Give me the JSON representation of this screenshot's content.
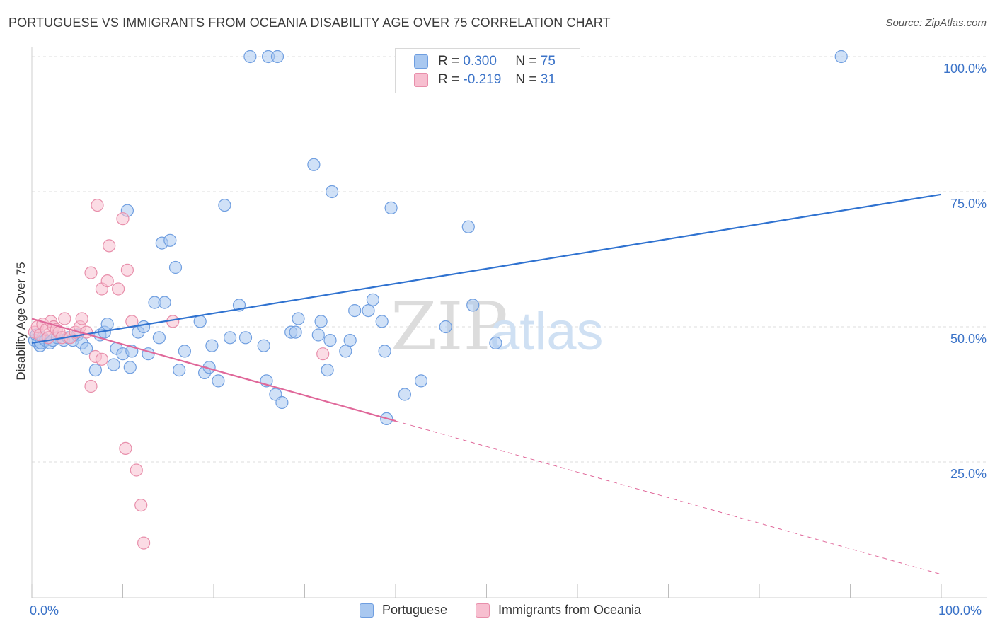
{
  "title": "PORTUGUESE VS IMMIGRANTS FROM OCEANIA DISABILITY AGE OVER 75 CORRELATION CHART",
  "source": "Source: ZipAtlas.com",
  "watermark": {
    "zip": "ZIP",
    "atlas": "atlas"
  },
  "legend": {
    "r_label": "R =",
    "n_label": "N =",
    "rows": [
      {
        "r": "0.300",
        "n": "75",
        "color": "#a9c8f0",
        "stroke": "#6f9ee0"
      },
      {
        "r": "-0.219",
        "n": "31",
        "color": "#f7bfd0",
        "stroke": "#e88fab"
      }
    ]
  },
  "chart_data": {
    "type": "scatter",
    "title": "PORTUGUESE VS IMMIGRANTS FROM OCEANIA DISABILITY AGE OVER 75 CORRELATION CHART",
    "xlabel": "",
    "ylabel": "Disability Age Over 75",
    "xlim": [
      0,
      100
    ],
    "ylim": [
      0,
      102
    ],
    "x_tick_labels": [
      "0.0%",
      "100.0%"
    ],
    "y_tick_labels": [
      "25.0%",
      "50.0%",
      "75.0%",
      "100.0%"
    ],
    "y_ticks": [
      25,
      50,
      75,
      100
    ],
    "grid": true,
    "series": [
      {
        "name": "Portuguese",
        "color": "#a9c8f0",
        "stroke": "#6f9ee0",
        "line_color": "#2f72d0",
        "trend": {
          "x0": 0,
          "y0": 47.0,
          "x1": 100,
          "y1": 74.5,
          "dashed_from": null
        },
        "points": [
          [
            0.3,
            47.5
          ],
          [
            0.5,
            48.5
          ],
          [
            0.7,
            47
          ],
          [
            0.9,
            46.5
          ],
          [
            1,
            47
          ],
          [
            1.2,
            48
          ],
          [
            1.5,
            47.5
          ],
          [
            2,
            47
          ],
          [
            2.3,
            47.5
          ],
          [
            2.8,
            48
          ],
          [
            3.5,
            47.5
          ],
          [
            4,
            48
          ],
          [
            4.5,
            47.5
          ],
          [
            5,
            48.5
          ],
          [
            5.5,
            47
          ],
          [
            6,
            46
          ],
          [
            7,
            42
          ],
          [
            7.5,
            48.5
          ],
          [
            8,
            49
          ],
          [
            8.3,
            50.5
          ],
          [
            9,
            43
          ],
          [
            9.3,
            46
          ],
          [
            10,
            45
          ],
          [
            10.5,
            71.5
          ],
          [
            10.8,
            42.5
          ],
          [
            11,
            45.5
          ],
          [
            11.7,
            49
          ],
          [
            12.3,
            50
          ],
          [
            12.8,
            45
          ],
          [
            13.5,
            54.5
          ],
          [
            14,
            48
          ],
          [
            14.3,
            65.5
          ],
          [
            14.6,
            54.5
          ],
          [
            15.2,
            66
          ],
          [
            15.8,
            61
          ],
          [
            16.2,
            42
          ],
          [
            16.8,
            45.5
          ],
          [
            18.5,
            51
          ],
          [
            19,
            41.5
          ],
          [
            19.5,
            42.5
          ],
          [
            19.8,
            46.5
          ],
          [
            20.5,
            40
          ],
          [
            21.2,
            72.5
          ],
          [
            21.8,
            48
          ],
          [
            22.8,
            54
          ],
          [
            23.5,
            48
          ],
          [
            24,
            100
          ],
          [
            25.5,
            46.5
          ],
          [
            25.8,
            40
          ],
          [
            26,
            100
          ],
          [
            26.8,
            37.5
          ],
          [
            27,
            100
          ],
          [
            27.5,
            36
          ],
          [
            28.5,
            49
          ],
          [
            29,
            49
          ],
          [
            29.3,
            51.5
          ],
          [
            31,
            80
          ],
          [
            31.5,
            48.5
          ],
          [
            31.8,
            51
          ],
          [
            32.5,
            42
          ],
          [
            32.8,
            47.5
          ],
          [
            33,
            75
          ],
          [
            34.5,
            45.5
          ],
          [
            35,
            47.5
          ],
          [
            35.5,
            53
          ],
          [
            37,
            53
          ],
          [
            37.5,
            55
          ],
          [
            38.5,
            51
          ],
          [
            38.8,
            45.5
          ],
          [
            39,
            33
          ],
          [
            39.5,
            72
          ],
          [
            41,
            37.5
          ],
          [
            42.8,
            40
          ],
          [
            45.5,
            50
          ],
          [
            48,
            68.5
          ],
          [
            48.5,
            54
          ],
          [
            51,
            47
          ],
          [
            89,
            100
          ]
        ]
      },
      {
        "name": "Immigrants from Oceania",
        "color": "#f7bfd0",
        "stroke": "#e88fab",
        "line_color": "#e0689a",
        "trend": {
          "x0": 0,
          "y0": 51.5,
          "x1": 100,
          "y1": 4.2,
          "dashed_from": 40
        },
        "points": [
          [
            0.3,
            49
          ],
          [
            0.6,
            50
          ],
          [
            0.9,
            48.5
          ],
          [
            1.2,
            50.5
          ],
          [
            1.6,
            49.5
          ],
          [
            1.8,
            48
          ],
          [
            2.1,
            51
          ],
          [
            2.4,
            50
          ],
          [
            2.7,
            49.5
          ],
          [
            3,
            49
          ],
          [
            3.3,
            48
          ],
          [
            3.6,
            51.5
          ],
          [
            4.2,
            48
          ],
          [
            4.8,
            49
          ],
          [
            5.3,
            50
          ],
          [
            5.5,
            51.5
          ],
          [
            6,
            49
          ],
          [
            6.5,
            39
          ],
          [
            6.5,
            60
          ],
          [
            7,
            44.5
          ],
          [
            7.2,
            72.5
          ],
          [
            7.7,
            57
          ],
          [
            7.7,
            44
          ],
          [
            8.3,
            58.5
          ],
          [
            8.5,
            65
          ],
          [
            9.5,
            57
          ],
          [
            10,
            70
          ],
          [
            10.3,
            27.5
          ],
          [
            10.5,
            60.5
          ],
          [
            11,
            51
          ],
          [
            11.5,
            23.5
          ],
          [
            12,
            17
          ],
          [
            12.3,
            10
          ],
          [
            15.5,
            51
          ],
          [
            32,
            45
          ]
        ]
      }
    ]
  }
}
